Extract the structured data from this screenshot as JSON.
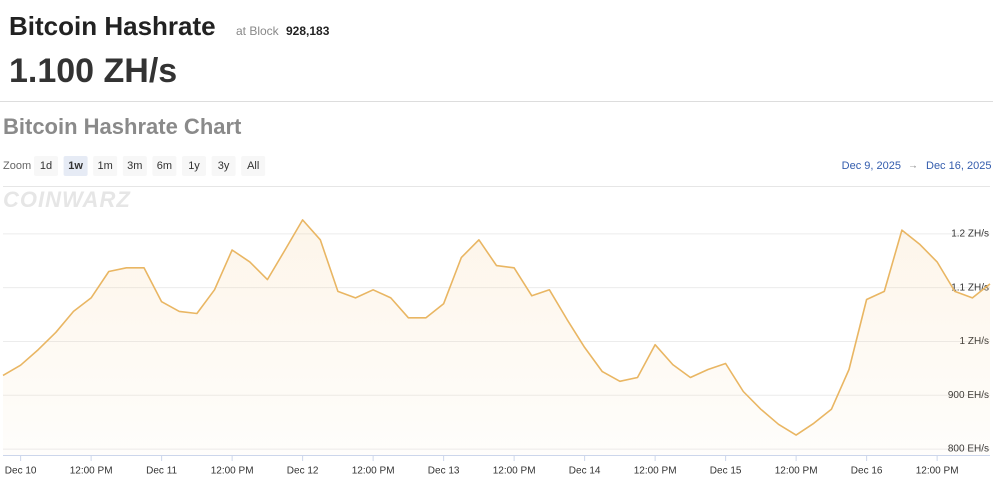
{
  "header": {
    "title": "Bitcoin Hashrate",
    "block_label": "at Block",
    "block": "928,183",
    "hashrate": "1.100 ZH/s"
  },
  "chart_data": {
    "type": "line",
    "title": "Bitcoin Hashrate Chart",
    "watermark": "COINWARZ",
    "zoom": {
      "label": "Zoom",
      "options": [
        "1d",
        "1w",
        "1m",
        "3m",
        "6m",
        "1y",
        "3y",
        "All"
      ],
      "selected": 1
    },
    "range": {
      "from": "Dec 9, 2025",
      "arrow": "→",
      "to": "Dec 16, 2025"
    },
    "x": [
      -3,
      0,
      3,
      6,
      9,
      12,
      15,
      18,
      21,
      24,
      27,
      30,
      33,
      36,
      39,
      42,
      45,
      48,
      51,
      54,
      57,
      60,
      63,
      66,
      69,
      72,
      75,
      78,
      81,
      84,
      87,
      90,
      93,
      96,
      99,
      102,
      105,
      108,
      111,
      114,
      117,
      120,
      123,
      126,
      129,
      132,
      135,
      138,
      141,
      144,
      147,
      150,
      153,
      156,
      159,
      162,
      165
    ],
    "series": [
      {
        "color": "#e9b663",
        "values": [
          937,
          956,
          985,
          1017,
          1056,
          1081,
          1130,
          1137,
          1137,
          1074,
          1056,
          1052,
          1096,
          1170,
          1148,
          1115,
          1170,
          1226,
          1189,
          1093,
          1081,
          1096,
          1081,
          1044,
          1044,
          1070,
          1156,
          1189,
          1141,
          1137,
          1085,
          1096,
          1041,
          989,
          944,
          926,
          933,
          994,
          957,
          933,
          948,
          959,
          907,
          874,
          846,
          826,
          848,
          874,
          948,
          1078,
          1093,
          1207,
          1181,
          1148,
          1093,
          1081,
          1107
        ]
      }
    ],
    "xlim": [
      -3,
      165
    ],
    "xticks": [
      {
        "value": 0,
        "label": "Dec 10"
      },
      {
        "value": 12,
        "label": "12:00 PM"
      },
      {
        "value": 24,
        "label": "Dec 11"
      },
      {
        "value": 36,
        "label": "12:00 PM"
      },
      {
        "value": 48,
        "label": "Dec 12"
      },
      {
        "value": 60,
        "label": "12:00 PM"
      },
      {
        "value": 72,
        "label": "Dec 13"
      },
      {
        "value": 84,
        "label": "12:00 PM"
      },
      {
        "value": 96,
        "label": "Dec 14"
      },
      {
        "value": 108,
        "label": "12:00 PM"
      },
      {
        "value": 120,
        "label": "Dec 15"
      },
      {
        "value": 132,
        "label": "12:00 PM"
      },
      {
        "value": 144,
        "label": "Dec 16"
      },
      {
        "value": 156,
        "label": "12:00 PM"
      }
    ],
    "ylim": [
      789,
      1289
    ],
    "yticks": [
      {
        "value": 800,
        "label": "800 EH/s"
      },
      {
        "value": 900,
        "label": "900 EH/s"
      },
      {
        "value": 1000,
        "label": "1 ZH/s"
      },
      {
        "value": 1100,
        "label": "1.1 ZH/s"
      },
      {
        "value": 1200,
        "label": "1.2 ZH/s"
      }
    ],
    "grid": true
  }
}
